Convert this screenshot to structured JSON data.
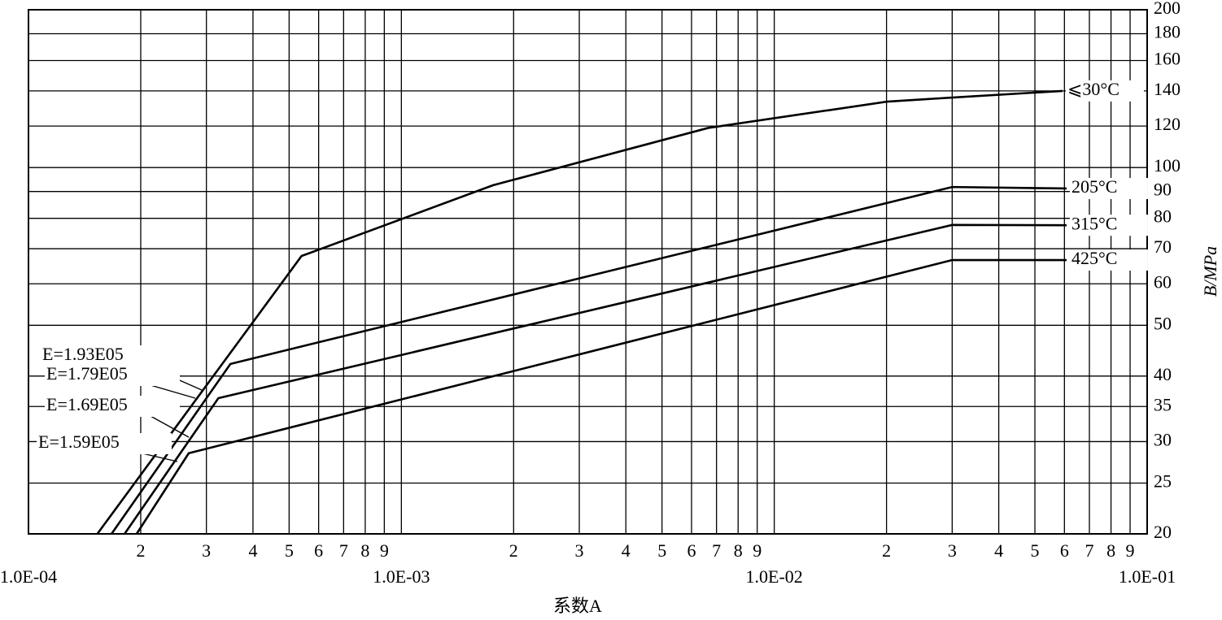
{
  "chart_data": {
    "type": "line",
    "x_label": "系数A",
    "y_label": "B/MPa",
    "xscale": "log",
    "yscale": "log",
    "grid": true,
    "xlim": [
      0.0001,
      0.1
    ],
    "ylim": [
      20,
      200
    ],
    "xticks": [
      {
        "value": 0.0001,
        "label": "1.0E-04"
      },
      {
        "value": 0.0002,
        "label": "2"
      },
      {
        "value": 0.0003,
        "label": "3"
      },
      {
        "value": 0.0004,
        "label": "4"
      },
      {
        "value": 0.0005,
        "label": "5"
      },
      {
        "value": 0.0006,
        "label": "6"
      },
      {
        "value": 0.0007,
        "label": "7"
      },
      {
        "value": 0.0008,
        "label": "8"
      },
      {
        "value": 0.0009,
        "label": "9"
      },
      {
        "value": 0.001,
        "label": "1.0E-03"
      },
      {
        "value": 0.002,
        "label": "2"
      },
      {
        "value": 0.003,
        "label": "3"
      },
      {
        "value": 0.004,
        "label": "4"
      },
      {
        "value": 0.005,
        "label": "5"
      },
      {
        "value": 0.006,
        "label": "6"
      },
      {
        "value": 0.007,
        "label": "7"
      },
      {
        "value": 0.008,
        "label": "8"
      },
      {
        "value": 0.009,
        "label": "9"
      },
      {
        "value": 0.01,
        "label": "1.0E-02"
      },
      {
        "value": 0.02,
        "label": "2"
      },
      {
        "value": 0.03,
        "label": "3"
      },
      {
        "value": 0.04,
        "label": "4"
      },
      {
        "value": 0.05,
        "label": "5"
      },
      {
        "value": 0.06,
        "label": "6"
      },
      {
        "value": 0.07,
        "label": "7"
      },
      {
        "value": 0.08,
        "label": "8"
      },
      {
        "value": 0.09,
        "label": "9"
      },
      {
        "value": 0.1,
        "label": "1.0E-01"
      }
    ],
    "yticks": [
      20,
      25,
      30,
      35,
      40,
      50,
      60,
      70,
      80,
      90,
      100,
      120,
      140,
      160,
      180,
      200
    ],
    "series": [
      {
        "name": "⩽30°C",
        "color": "#000000",
        "x": [
          0.000153,
          0.00054,
          0.00176,
          0.00665,
          0.0201,
          0.03,
          0.0593
        ],
        "values": [
          20,
          67.8,
          92.5,
          119,
          133.6,
          136,
          140
        ]
      },
      {
        "name": "205°C",
        "color": "#000000",
        "x": [
          0.000167,
          0.000348,
          0.03,
          0.0608
        ],
        "values": [
          20,
          42.2,
          91.8,
          91.2
        ]
      },
      {
        "name": "315°C",
        "color": "#000000",
        "x": [
          0.000181,
          0.000323,
          0.03,
          0.0608
        ],
        "values": [
          20,
          36.3,
          77.7,
          77.6
        ]
      },
      {
        "name": "425°C",
        "color": "#000000",
        "x": [
          0.000195,
          0.000269,
          0.03,
          0.0608
        ],
        "values": [
          20,
          28.5,
          66.6,
          66.6
        ]
      }
    ],
    "annotations": [
      "E=1.93E05",
      "E=1.79E05",
      "E=1.69E05",
      "E=1.59E05"
    ]
  }
}
